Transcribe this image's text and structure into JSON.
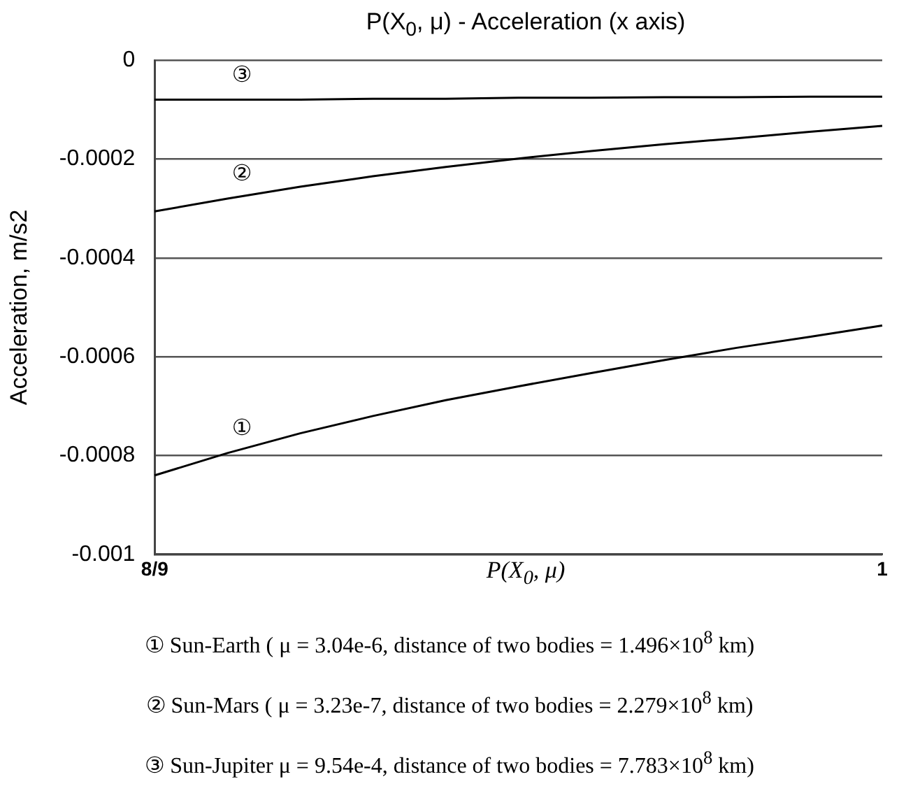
{
  "chart_data": {
    "type": "line",
    "title": "P(X$_{0}$, μ)  - Acceleration (x axis)",
    "xlabel": "P(X$_{0}$, μ)",
    "ylabel": "Acceleration, m/s2",
    "categories": [
      "8/9",
      null,
      null,
      null,
      null,
      null,
      null,
      null,
      null,
      null,
      "1"
    ],
    "series": [
      {
        "color": "#000000",
        "values": [
          -0.00084,
          -0.000795,
          -0.000755,
          -0.00072,
          -0.000688,
          -0.00066,
          -0.000633,
          -0.000607,
          -0.000582,
          -0.00056,
          -0.000537
        ]
      },
      {
        "color": "#000000",
        "values": [
          -0.000306,
          -0.00028,
          -0.000256,
          -0.000235,
          -0.000216,
          -0.000199,
          -0.000184,
          -0.00017,
          -0.000158,
          -0.000145,
          -0.000133
        ]
      },
      {
        "color": "#000000",
        "values": [
          -8e-05,
          -8e-05,
          -8e-05,
          -7.8e-05,
          -7.8e-05,
          -7.6e-05,
          -7.6e-05,
          -7.5e-05,
          -7.5e-05,
          -7.4e-05,
          -7.4e-05
        ]
      }
    ],
    "ylim": [
      -0.001,
      0
    ],
    "yticks": [
      -0.001,
      -0.0008,
      -0.0006,
      -0.0004,
      -0.0002,
      0
    ],
    "grid": "y",
    "marker": "none",
    "annotations": [
      "①",
      "②",
      "③",
      "① Sun-Earth ( μ = 3.04e-6, distance of two bodies = 1.496×10$^{8}$ km)",
      "② Sun-Mars ( μ = 3.23e-7,  distance of two bodies = 2.279×10$^{8}$ km)",
      "③ Sun-Jupiter  μ = 9.54e-4, distance of two bodies = 7.783×10$^{8}$ km)"
    ]
  }
}
